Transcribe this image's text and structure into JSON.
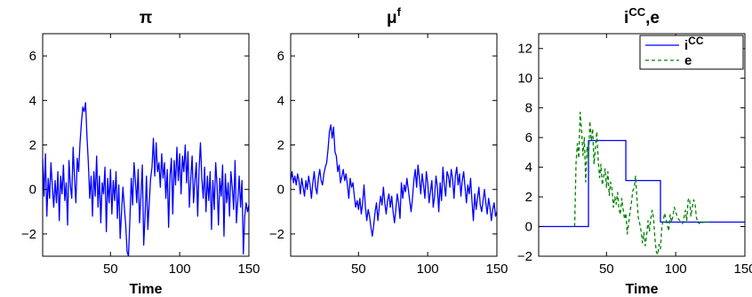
{
  "chart_data": [
    {
      "type": "line",
      "title": "π",
      "xlabel": "Time",
      "ylabel": "",
      "xlim": [
        1,
        150
      ],
      "ylim": [
        -3,
        7
      ],
      "xticks": [
        50,
        100,
        150
      ],
      "yticks": [
        -2,
        0,
        2,
        4,
        6
      ],
      "grid": false,
      "legend": null,
      "series": [
        {
          "color": "#0000ff",
          "style": "solid",
          "values": [
            1.4,
            -0.3,
            1.6,
            -1.2,
            0.5,
            -0.4,
            1.2,
            0.1,
            -0.8,
            0.4,
            -0.6,
            0.8,
            -1.4,
            0.6,
            -0.2,
            1.1,
            -0.5,
            0.3,
            -1.6,
            1.3,
            0.2,
            -0.4,
            1.9,
            0.5,
            -0.6,
            1.4,
            0.8,
            2.1,
            3.0,
            3.7,
            3.5,
            3.9,
            2.4,
            1.2,
            -0.4,
            0.6,
            -1.2,
            0.8,
            -0.3,
            1.5,
            -0.8,
            0.6,
            -1.5,
            0.3,
            -0.2,
            1.0,
            -1.9,
            0.5,
            -0.6,
            0.9,
            -1.1,
            0.4,
            -0.5,
            0.8,
            -1.3,
            0.2,
            -2.2,
            -1.0,
            0.1,
            -0.8,
            -1.6,
            -2.8,
            -3.0,
            -1.4,
            0.5,
            -0.7,
            1.2,
            0.4,
            -0.6,
            0.9,
            -1.5,
            -0.3,
            1.1,
            -2.5,
            -1.2,
            0.6,
            -1.8,
            -0.6,
            0.5,
            1.0,
            2.3,
            0.6,
            2.1,
            0.8,
            1.2,
            0.1,
            1.6,
            0.5,
            1.2,
            -0.4,
            0.9,
            -1.7,
            0.6,
            1.4,
            -1.1,
            1.3,
            0.2,
            1.9,
            0.4,
            1.6,
            -0.2,
            1.5,
            0.8,
            2.0,
            0.3,
            1.7,
            -0.8,
            0.5,
            1.5,
            -0.6,
            0.4,
            1.2,
            -1.2,
            0.9,
            2.1,
            0.5,
            -0.4,
            1.0,
            -1.0,
            0.6,
            -0.5,
            0.8,
            -1.8,
            0.4,
            -0.9,
            1.2,
            0.2,
            -1.6,
            0.5,
            -0.3,
            1.1,
            -2.1,
            0.7,
            -0.6,
            0.3,
            -1.2,
            0.8,
            0.1,
            -0.9,
            1.3,
            -1.5,
            -0.5,
            0.6,
            -0.8,
            0.4,
            -2.9,
            -1.2,
            -0.6,
            -1.0,
            -0.7
          ]
        }
      ]
    },
    {
      "type": "line",
      "title": "μ",
      "title_superscript": "f",
      "xlabel": "",
      "ylabel": "",
      "xlim": [
        1,
        150
      ],
      "ylim": [
        -3,
        7
      ],
      "xticks": [
        50,
        100,
        150
      ],
      "yticks": [
        -2,
        0,
        2,
        4,
        6
      ],
      "grid": false,
      "legend": null,
      "series": [
        {
          "color": "#0000ff",
          "style": "solid",
          "values": [
            0.4,
            0.8,
            0.3,
            0.6,
            0.2,
            0.7,
            0.4,
            -0.2,
            0.5,
            0.1,
            -0.3,
            0.4,
            0.0,
            0.6,
            0.2,
            -0.4,
            0.3,
            0.8,
            0.1,
            -0.2,
            0.5,
            0.9,
            0.4,
            0.2,
            0.7,
            1.0,
            1.2,
            1.8,
            2.6,
            2.9,
            2.3,
            2.8,
            1.7,
            1.5,
            0.8,
            1.1,
            0.3,
            0.6,
            0.9,
            0.4,
            0.7,
            0.2,
            -0.4,
            0.5,
            0.1,
            0.3,
            -0.3,
            -0.8,
            -0.5,
            -0.9,
            -0.4,
            -1.1,
            -0.6,
            0.2,
            -0.8,
            -1.4,
            -0.9,
            -1.2,
            -1.7,
            -2.1,
            -1.6,
            -1.0,
            -0.6,
            -1.4,
            -0.8,
            -0.3,
            -0.7,
            0.1,
            -0.6,
            -1.1,
            -0.5,
            -0.2,
            -0.8,
            -0.3,
            -1.0,
            -1.5,
            -0.9,
            -0.2,
            -0.6,
            -1.3,
            0.3,
            -0.4,
            0.2,
            -0.1,
            0.5,
            0.0,
            -0.5,
            -1.0,
            -0.4,
            0.4,
            0.9,
            0.1,
            1.1,
            0.5,
            -0.2,
            0.7,
            0.2,
            -0.4,
            0.8,
            0.3,
            -0.6,
            -0.1,
            0.4,
            -0.8,
            -0.3,
            0.6,
            0.1,
            -1.0,
            0.3,
            -0.5,
            1.0,
            0.2,
            -0.3,
            0.8,
            0.6,
            0.1,
            0.9,
            0.5,
            -0.4,
            0.6,
            1.0,
            0.2,
            0.7,
            -0.3,
            0.4,
            0.8,
            0.1,
            -0.6,
            0.2,
            -0.2,
            0.5,
            -0.5,
            -1.4,
            -0.2,
            -0.9,
            -0.4,
            0.1,
            -0.7,
            -1.0,
            -0.5,
            0.0,
            -0.6,
            -1.1,
            -0.4,
            -0.8,
            -1.4,
            -0.9,
            -0.6,
            -1.2,
            -1.0
          ]
        }
      ]
    },
    {
      "type": "line",
      "title": "i",
      "title_superscript": "CC",
      "title_suffix": ",e",
      "xlabel": "Time",
      "ylabel": "",
      "xlim": [
        1,
        150
      ],
      "ylim": [
        -2,
        13
      ],
      "xticks": [
        50,
        100,
        150
      ],
      "yticks": [
        -2,
        0,
        2,
        4,
        6,
        8,
        10,
        12
      ],
      "grid": false,
      "legend": "top-right",
      "series": [
        {
          "name": "i",
          "name_superscript": "CC",
          "color": "#0000ff",
          "style": "solid",
          "steps": [
            {
              "x": 1,
              "y": 0
            },
            {
              "x": 37,
              "y": 5.8
            },
            {
              "x": 64,
              "y": 3.1
            },
            {
              "x": 89,
              "y": 0.3
            },
            {
              "x": 150,
              "y": 0.3
            }
          ]
        },
        {
          "name": "e",
          "color": "#008000",
          "style": "dashed",
          "x_start": 27,
          "values": [
            0.0,
            4.3,
            5.6,
            4.6,
            7.7,
            6.5,
            4.8,
            6.0,
            3.0,
            5.4,
            4.4,
            7.1,
            5.8,
            6.6,
            4.2,
            5.3,
            6.4,
            4.5,
            3.3,
            4.2,
            2.8,
            3.4,
            3.9,
            2.6,
            3.7,
            2.1,
            3.0,
            2.5,
            1.3,
            2.0,
            1.5,
            2.3,
            1.2,
            0.8,
            1.9,
            1.2,
            0.5,
            0.9,
            -0.5,
            0.2,
            1.0,
            1.6,
            2.4,
            2.6,
            3.4,
            1.9,
            0.6,
            0.2,
            -0.3,
            -1.1,
            -0.4,
            -1.3,
            -0.6,
            0.4,
            -0.3,
            0.5,
            1.1,
            0.6,
            -0.8,
            -1.7,
            -1.9,
            -1.2,
            -1.5,
            0.0,
            0.4,
            0.9,
            0.5,
            0.1,
            -0.3,
            0.8,
            0.3,
            0.7,
            1.3,
            1.0,
            0.7,
            0.5,
            0.4,
            0.3,
            0.2,
            0.6,
            1.1,
            0.4,
            1.8,
            1.9,
            0.7,
            1.3,
            1.8,
            1.5,
            0.6,
            0.3,
            0.2,
            0.3,
            0.2,
            0.3,
            0.3,
            0.2,
            0.3,
            0.3
          ]
        }
      ]
    }
  ]
}
